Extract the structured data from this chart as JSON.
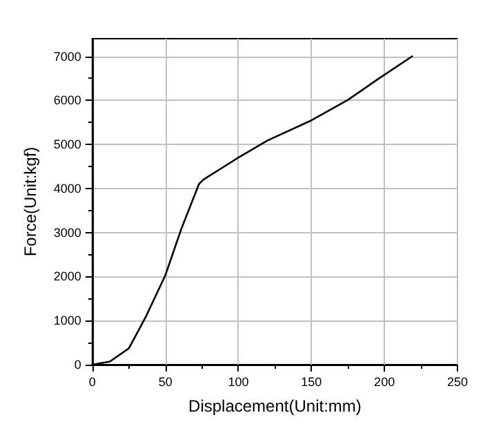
{
  "chart_data": {
    "type": "line",
    "xlabel": "Displacement(Unit:mm)",
    "ylabel": "Force(Unit:kgf)",
    "x": [
      0,
      12,
      25,
      36.5,
      50,
      61,
      73,
      76,
      99,
      120,
      149,
      175,
      195,
      219
    ],
    "series": [
      {
        "color": "#000000",
        "values": [
          0,
          70,
          370,
          1080,
          2030,
          3090,
          4100,
          4200,
          4680,
          5090,
          5530,
          6010,
          6470,
          7000
        ]
      }
    ],
    "xlim": [
      0,
      250
    ],
    "xticks": [
      0,
      50,
      100,
      150,
      200,
      250
    ],
    "ylim": [
      0,
      7400
    ],
    "yticks": [
      0,
      1000,
      2000,
      3000,
      4000,
      5000,
      6000,
      7000
    ],
    "grid": true,
    "marker": "none",
    "line_style": "solid"
  }
}
